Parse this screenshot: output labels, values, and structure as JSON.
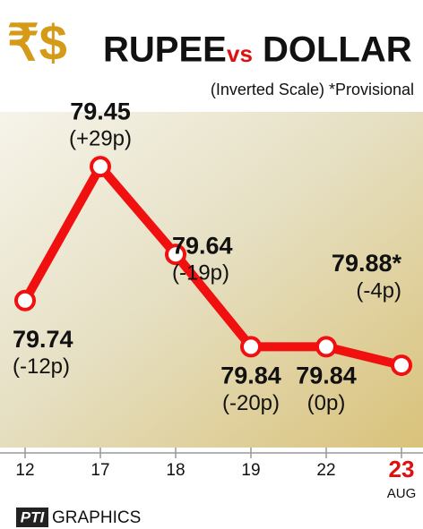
{
  "chart_data": {
    "type": "line",
    "logo": "₹$",
    "title": [
      "RUPEE",
      "vs",
      "DOLLAR"
    ],
    "subtitle": "(Inverted Scale) *Provisional",
    "categories": [
      "12",
      "17",
      "18",
      "19",
      "22",
      "23"
    ],
    "month": "AUG",
    "series": [
      {
        "name": "Rupee vs Dollar",
        "color": "#f01010",
        "values": [
          79.74,
          79.45,
          79.64,
          79.84,
          79.84,
          79.88
        ],
        "value_labels": [
          "79.74",
          "79.45",
          "79.64",
          "79.84",
          "79.84",
          "79.88*"
        ],
        "changes": [
          "(-12p)",
          "(+29p)",
          "(-19p)",
          "(-20p)",
          "(0p)",
          "(-4p)"
        ]
      }
    ],
    "ylim": [
      79.38,
      80.0
    ],
    "inverted": true,
    "credit": [
      "PTI",
      "GRAPHICS"
    ]
  }
}
